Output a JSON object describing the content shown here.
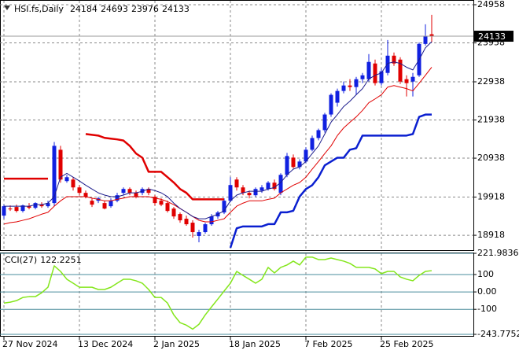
{
  "chart_data": [
    {
      "type": "candlestick",
      "title": "HSI.fs,Daily",
      "categories": [
        "27 Nov 2024",
        null,
        null,
        null,
        null,
        null,
        null,
        null,
        null,
        null,
        null,
        null,
        "13 Dec 2024",
        null,
        null,
        null,
        null,
        null,
        null,
        null,
        null,
        null,
        null,
        null,
        "2 Jan 2025",
        null,
        null,
        null,
        null,
        null,
        null,
        null,
        null,
        null,
        null,
        null,
        "18 Jan 2025",
        null,
        null,
        null,
        null,
        null,
        null,
        null,
        null,
        null,
        null,
        null,
        "7 Feb 2025",
        null,
        null,
        null,
        null,
        null,
        null,
        null,
        null,
        null,
        null,
        null,
        "25 Feb 2025",
        null,
        null,
        null,
        null,
        null,
        null,
        null,
        null
      ],
      "open": [
        19433,
        19618,
        19659,
        19556,
        19679,
        19638,
        19720,
        19679,
        19762,
        21158,
        20337,
        20378,
        20172,
        20029,
        19823,
        19823,
        19762,
        19679,
        19823,
        20029,
        20131,
        20029,
        20029,
        20131,
        19926,
        19823,
        19762,
        19618,
        19474,
        19351,
        19248,
        18899,
        19001,
        19207,
        19412,
        19515,
        19823,
        20378,
        20172,
        20029,
        19967,
        20090,
        20131,
        20296,
        20029,
        20501,
        20953,
        20706,
        20850,
        21158,
        21466,
        21672,
        22082,
        22391,
        22699,
        22842,
        22801,
        23007,
        23007,
        23418,
        22904,
        23171,
        23623,
        23520,
        23007,
        22945,
        23109,
        23931,
        24184
      ],
      "high": [
        19720,
        19700,
        19720,
        19720,
        19762,
        19782,
        19782,
        19823,
        21363,
        21261,
        20501,
        20439,
        20234,
        20090,
        19885,
        19926,
        19823,
        19885,
        20029,
        20172,
        20172,
        20090,
        20172,
        20172,
        19967,
        19885,
        19823,
        19659,
        19515,
        19433,
        19310,
        19062,
        19248,
        19474,
        19556,
        19885,
        20439,
        20439,
        20234,
        20090,
        20172,
        20234,
        20337,
        20378,
        20542,
        21076,
        21035,
        20912,
        21220,
        21528,
        21713,
        22123,
        22637,
        22760,
        22945,
        23007,
        23068,
        23171,
        23664,
        23520,
        23294,
        24034,
        23705,
        23582,
        23109,
        23171,
        23972,
        24445,
        24693
      ],
      "low": [
        19351,
        19556,
        19515,
        19515,
        19597,
        19597,
        19638,
        19638,
        19679,
        20296,
        20296,
        20090,
        19967,
        19885,
        19659,
        19762,
        19597,
        19638,
        19782,
        19967,
        19967,
        19885,
        19967,
        19967,
        19700,
        19679,
        19515,
        19351,
        19248,
        19166,
        18858,
        18735,
        18960,
        19166,
        19351,
        19474,
        19782,
        20090,
        19967,
        19885,
        19926,
        20029,
        20090,
        20090,
        19967,
        20439,
        20665,
        20644,
        20809,
        21117,
        21405,
        21610,
        22021,
        22288,
        22637,
        22699,
        22596,
        22904,
        22945,
        22842,
        22842,
        23109,
        23356,
        22883,
        22555,
        22555,
        23068,
        23890,
        23976
      ],
      "close": [
        19679,
        19597,
        19556,
        19700,
        19638,
        19762,
        19679,
        19762,
        21261,
        20378,
        20439,
        20172,
        20029,
        19926,
        19720,
        19885,
        19618,
        19823,
        19967,
        20131,
        20029,
        19926,
        20131,
        20029,
        19762,
        19720,
        19556,
        19412,
        19310,
        19207,
        19001,
        19001,
        19207,
        19412,
        19515,
        19823,
        20234,
        20172,
        20029,
        19967,
        20131,
        20172,
        20296,
        20131,
        20501,
        20994,
        20706,
        20850,
        21158,
        21466,
        21672,
        22082,
        22596,
        22699,
        22842,
        22801,
        23007,
        23109,
        23459,
        22904,
        23212,
        23623,
        23418,
        22945,
        22904,
        23068,
        23931,
        24136,
        24133
      ],
      "up_color": "#1020e0",
      "down_color": "#e00000",
      "series": [
        {
          "color": "#e00000",
          "line_width": 1,
          "values": [
            19210,
            19250,
            19270,
            19310,
            19350,
            19410,
            19470,
            19520,
            19680,
            19820,
            19930,
            19930,
            19930,
            19930,
            19890,
            19860,
            19820,
            19820,
            19860,
            19890,
            19930,
            19930,
            19930,
            19930,
            19890,
            19860,
            19800,
            19720,
            19620,
            19520,
            19410,
            19310,
            19270,
            19270,
            19310,
            19350,
            19520,
            19680,
            19760,
            19820,
            19820,
            19820,
            19860,
            19890,
            20030,
            20130,
            20230,
            20300,
            20440,
            20650,
            20850,
            21060,
            21260,
            21530,
            21730,
            21880,
            22020,
            22190,
            22390,
            22490,
            22600,
            22800,
            22840,
            22800,
            22760,
            22700,
            22900,
            23110,
            23320
          ]
        },
        {
          "color": "#e00000",
          "line_width": 2.5,
          "values": [
            20400,
            20400,
            20400,
            20400,
            20400,
            20400,
            20400,
            20400,
            null,
            null,
            null,
            null,
            null,
            21570,
            21550,
            21530,
            21470,
            21450,
            21430,
            21400,
            21260,
            21060,
            20950,
            20580,
            20580,
            20580,
            20440,
            20300,
            20130,
            20030,
            19860,
            19860,
            19860,
            19860,
            19860,
            19860,
            null,
            null,
            null,
            null,
            null,
            null,
            null,
            null,
            null,
            null,
            null,
            null,
            null,
            null,
            null,
            null,
            null,
            null,
            null,
            null,
            null,
            null,
            null,
            null,
            null,
            null,
            null,
            null,
            null,
            null,
            null,
            null,
            null
          ]
        },
        {
          "color": "#0a1fd0",
          "line_width": 2.5,
          "values": [
            null,
            null,
            null,
            null,
            null,
            null,
            null,
            null,
            null,
            null,
            null,
            null,
            null,
            null,
            null,
            null,
            null,
            null,
            null,
            null,
            null,
            null,
            null,
            null,
            null,
            null,
            null,
            null,
            null,
            null,
            null,
            null,
            null,
            null,
            null,
            null,
            18590,
            19100,
            19150,
            19150,
            19150,
            19150,
            19210,
            19210,
            19520,
            19520,
            19560,
            19930,
            20130,
            20230,
            20440,
            20750,
            20850,
            20950,
            20950,
            21160,
            21200,
            21530,
            21530,
            21530,
            21530,
            21530,
            21530,
            21530,
            21530,
            21570,
            22020,
            22080,
            22080
          ]
        },
        {
          "color": "#1c1c8c",
          "line_width": 1,
          "values": [
            19680,
            19680,
            19680,
            19680,
            19680,
            19720,
            19720,
            19760,
            19930,
            20440,
            20540,
            20440,
            20340,
            20230,
            20130,
            20030,
            19970,
            19930,
            19930,
            19970,
            20030,
            20030,
            20070,
            20130,
            20090,
            20030,
            19930,
            19760,
            19620,
            19520,
            19410,
            19350,
            19350,
            19410,
            19470,
            19560,
            19820,
            19970,
            20030,
            20070,
            20070,
            20070,
            20130,
            20170,
            20300,
            20500,
            20650,
            20710,
            20850,
            21060,
            21260,
            21570,
            21880,
            22080,
            22290,
            22430,
            22600,
            22760,
            23010,
            23110,
            23170,
            23420,
            23460,
            23420,
            23320,
            23250,
            23520,
            23830,
            23990
          ]
        }
      ],
      "ylim": [
        18528,
        25061
      ],
      "yticks": [
        24958,
        23958,
        22938,
        21938,
        20938,
        19918,
        18918
      ],
      "grid": true
    },
    {
      "type": "line",
      "title": "CCI(27)",
      "series": [
        {
          "color": "#84e61c",
          "line_width": 1.5,
          "values": [
            -64,
            -59,
            -50,
            -32,
            -27,
            -27,
            -5,
            27,
            150,
            118,
            73,
            50,
            27,
            27,
            27,
            14,
            14,
            27,
            50,
            73,
            73,
            64,
            50,
            14,
            -32,
            -32,
            -64,
            -132,
            -177,
            -191,
            -214,
            -186,
            -132,
            -86,
            -41,
            5,
            50,
            118,
            95,
            73,
            50,
            73,
            141,
            109,
            141,
            155,
            177,
            155,
            200,
            200,
            186,
            186,
            195,
            186,
            177,
            164,
            141,
            141,
            141,
            132,
            105,
            118,
            118,
            86,
            73,
            64,
            95,
            118,
            122.2251
          ]
        }
      ],
      "ylim": [
        -243.7752,
        221.9836
      ],
      "yticks": [
        221.9836,
        100,
        {
          "value": 0,
          "label": "0.00"
        },
        -100,
        -243.7752
      ],
      "grid": true
    }
  ]
}
